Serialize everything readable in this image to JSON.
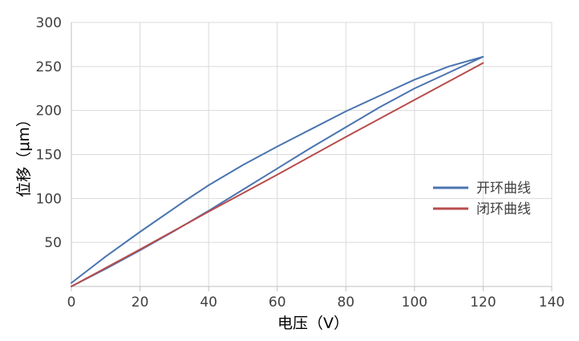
{
  "chart_data": {
    "type": "line",
    "title": "",
    "xlabel": "电压（V）",
    "ylabel": "位移（μm）",
    "xlim": [
      0,
      140
    ],
    "ylim": [
      0,
      300
    ],
    "x_ticks": [
      "0",
      "20",
      "40",
      "60",
      "80",
      "100",
      "120",
      "140"
    ],
    "y_ticks": [
      "50",
      "100",
      "150",
      "200",
      "250",
      "300"
    ],
    "grid": true,
    "legend_position": "right",
    "series": [
      {
        "name": "开环曲线",
        "color": "#4a74b0",
        "hysteresis_loop": [
          {
            "segment": "ascending",
            "x": [
              0,
              10,
              20,
              30,
              40,
              50,
              60,
              70,
              80,
              90,
              100,
              110,
              120
            ],
            "y": [
              0,
              20,
              41,
              63,
              86,
              110,
              134,
              158,
              181,
              204,
              225,
              243,
              261
            ]
          },
          {
            "segment": "descending",
            "x": [
              120,
              110,
              100,
              90,
              80,
              70,
              60,
              50,
              40,
              33,
              20,
              10,
              0
            ],
            "y": [
              261,
              250,
              235,
              217,
              199,
              179,
              159,
              138,
              115,
              97,
              62,
              34,
              4
            ]
          }
        ]
      },
      {
        "name": "闭环曲线",
        "color": "#b84c4c",
        "x": [
          0,
          20,
          40,
          60,
          80,
          100,
          120
        ],
        "y": [
          0,
          42,
          85,
          127,
          170,
          212,
          254
        ]
      }
    ]
  }
}
